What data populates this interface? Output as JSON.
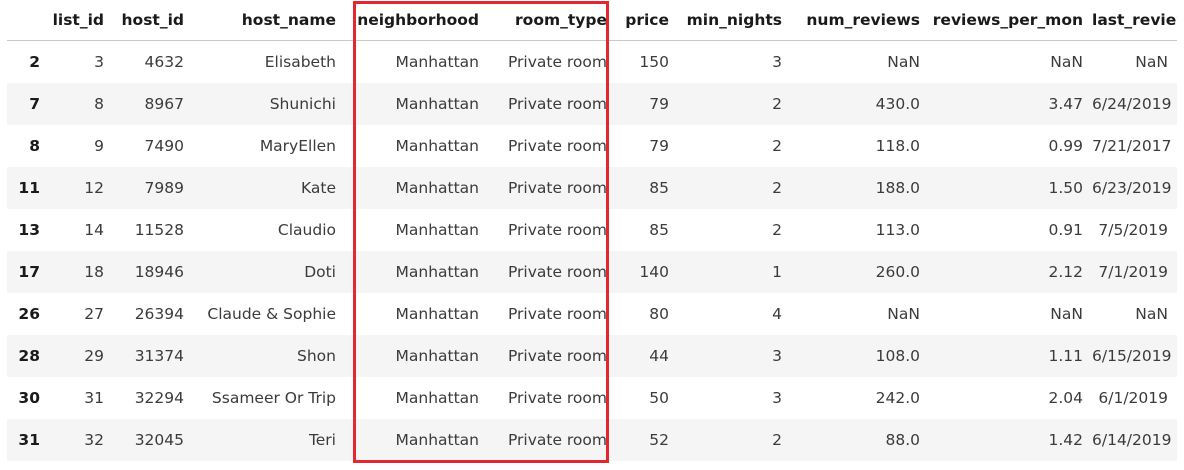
{
  "columns": [
    "",
    "list_id",
    "host_id",
    "host_name",
    "neighborhood",
    "room_type",
    "price",
    "min_nights",
    "num_reviews",
    "reviews_per_mon",
    "last_review"
  ],
  "rows": [
    [
      "2",
      "3",
      "4632",
      "Elisabeth",
      "Manhattan",
      "Private room",
      "150",
      "3",
      "NaN",
      "NaN",
      "NaN"
    ],
    [
      "7",
      "8",
      "8967",
      "Shunichi",
      "Manhattan",
      "Private room",
      "79",
      "2",
      "430.0",
      "3.47",
      "6/24/2019"
    ],
    [
      "8",
      "9",
      "7490",
      "MaryEllen",
      "Manhattan",
      "Private room",
      "79",
      "2",
      "118.0",
      "0.99",
      "7/21/2017"
    ],
    [
      "11",
      "12",
      "7989",
      "Kate",
      "Manhattan",
      "Private room",
      "85",
      "2",
      "188.0",
      "1.50",
      "6/23/2019"
    ],
    [
      "13",
      "14",
      "11528",
      "Claudio",
      "Manhattan",
      "Private room",
      "85",
      "2",
      "113.0",
      "0.91",
      "7/5/2019"
    ],
    [
      "17",
      "18",
      "18946",
      "Doti",
      "Manhattan",
      "Private room",
      "140",
      "1",
      "260.0",
      "2.12",
      "7/1/2019"
    ],
    [
      "26",
      "27",
      "26394",
      "Claude & Sophie",
      "Manhattan",
      "Private room",
      "80",
      "4",
      "NaN",
      "NaN",
      "NaN"
    ],
    [
      "28",
      "29",
      "31374",
      "Shon",
      "Manhattan",
      "Private room",
      "44",
      "3",
      "108.0",
      "1.11",
      "6/15/2019"
    ],
    [
      "30",
      "31",
      "32294",
      "Ssameer Or Trip",
      "Manhattan",
      "Private room",
      "50",
      "3",
      "242.0",
      "2.04",
      "6/1/2019"
    ],
    [
      "31",
      "32",
      "32045",
      "Teri",
      "Manhattan",
      "Private room",
      "52",
      "2",
      "88.0",
      "1.42",
      "6/14/2019"
    ]
  ],
  "highlight": {
    "columns": [
      "neighborhood",
      "room_type"
    ],
    "color": "#e3262f"
  }
}
